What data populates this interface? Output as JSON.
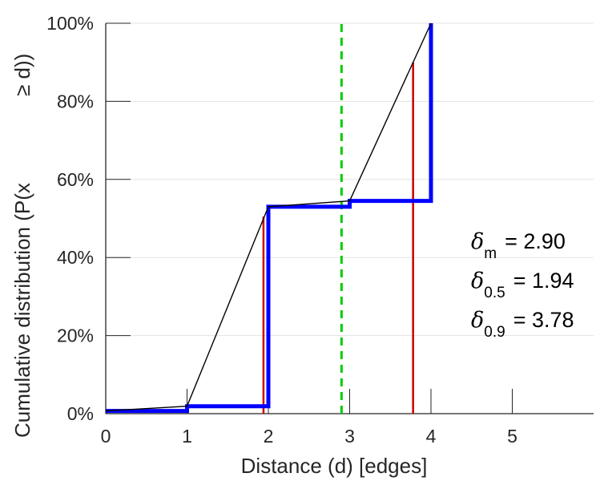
{
  "chart_data": {
    "type": "line",
    "title": "",
    "xlabel": "Distance (d) [edges]",
    "ylabel": "Cumulative distribution (P(x ≥ d))",
    "ylabel_part1": "Cumulative distribution (P(x",
    "ylabel_part2": "≥ d))",
    "xlim": [
      0,
      6
    ],
    "ylim": [
      0,
      100
    ],
    "x_ticks": [
      {
        "value": 0,
        "label": "0"
      },
      {
        "value": 1,
        "label": "1"
      },
      {
        "value": 2,
        "label": "2"
      },
      {
        "value": 3,
        "label": "3"
      },
      {
        "value": 4,
        "label": "4"
      },
      {
        "value": 5,
        "label": "5"
      }
    ],
    "y_ticks": [
      {
        "value": 0,
        "label": "0%"
      },
      {
        "value": 20,
        "label": "20%"
      },
      {
        "value": 40,
        "label": "40%"
      },
      {
        "value": 60,
        "label": "60%"
      },
      {
        "value": 80,
        "label": "80%"
      },
      {
        "value": 100,
        "label": "100%"
      }
    ],
    "grid": "horizontal",
    "series": [
      {
        "style": "step",
        "color": "#0000ff",
        "points": [
          [
            0,
            0.7
          ],
          [
            1,
            0.7
          ],
          [
            1,
            1.9
          ],
          [
            2,
            1.9
          ],
          [
            2,
            53.0
          ],
          [
            3,
            53.0
          ],
          [
            3,
            54.5
          ],
          [
            4,
            54.5
          ],
          [
            4,
            100
          ]
        ]
      },
      {
        "style": "line",
        "color": "#000000",
        "points": [
          [
            0,
            0.7
          ],
          [
            1,
            1.9
          ],
          [
            2,
            53.0
          ],
          [
            3,
            54.5
          ],
          [
            4,
            100
          ]
        ]
      }
    ],
    "vertical_lines": [
      {
        "x": 1.94,
        "y_top": 50.5,
        "color": "#cc0000",
        "style": "solid"
      },
      {
        "x": 3.78,
        "y_top": 90,
        "color": "#cc0000",
        "style": "solid"
      },
      {
        "x": 2.9,
        "y_top": 100,
        "color": "#00cc00",
        "style": "dashed"
      }
    ],
    "annotations": [
      {
        "symbol": "δ",
        "sub": "m",
        "text": "= 2.90"
      },
      {
        "symbol": "δ",
        "sub": "0.5",
        "text": "= 1.94"
      },
      {
        "symbol": "δ",
        "sub": "0.9",
        "text": "= 3.78"
      }
    ]
  }
}
